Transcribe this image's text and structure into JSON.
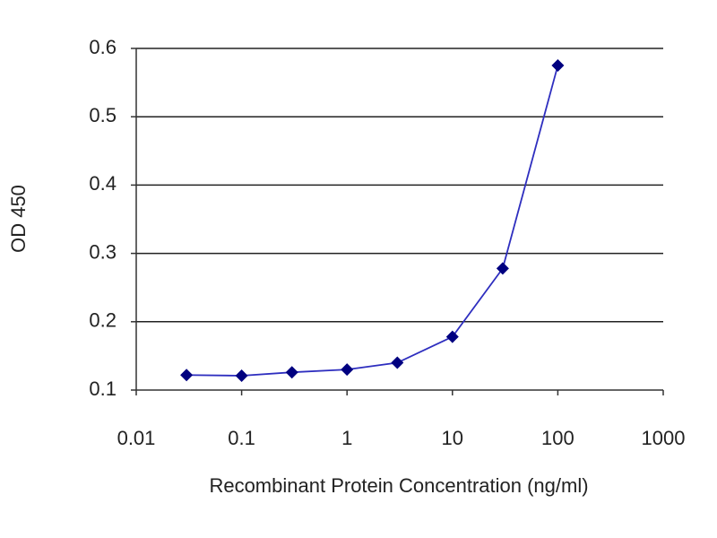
{
  "chart_data": {
    "type": "line",
    "xlabel": "Recombinant Protein Concentration (ng/ml)",
    "ylabel": "OD 450",
    "x": [
      0.03,
      0.1,
      0.3,
      1,
      3,
      10,
      30,
      100
    ],
    "values": [
      0.122,
      0.121,
      0.126,
      0.13,
      0.14,
      0.178,
      0.278,
      0.575
    ],
    "color": "#2e2ebf",
    "marker_color": "#000080",
    "xscale": "log",
    "xlim": [
      0.01,
      1000
    ],
    "ylim": [
      0.1,
      0.6
    ],
    "xticks": [
      0.01,
      0.1,
      1,
      10,
      100,
      1000
    ],
    "yticks": [
      0.1,
      0.2,
      0.3,
      0.4,
      0.5,
      0.6
    ],
    "grid": true
  }
}
